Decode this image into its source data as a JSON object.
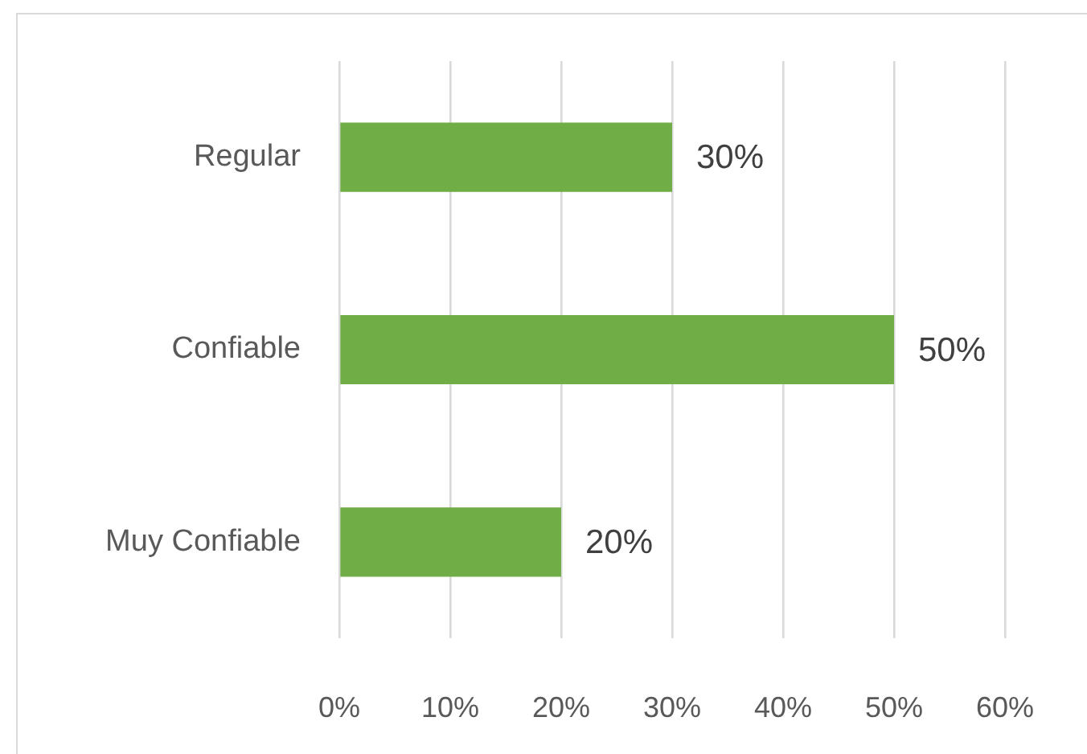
{
  "chart_data": {
    "type": "bar",
    "orientation": "horizontal",
    "categories": [
      "Regular",
      "Confiable",
      "Muy Confiable"
    ],
    "values": [
      30,
      50,
      20
    ],
    "color": "#70ad47",
    "value_labels": [
      "30%",
      "50%",
      "20%"
    ],
    "xlim": [
      0,
      60
    ],
    "xticks": [
      {
        "value": 0,
        "label": "0%"
      },
      {
        "value": 10,
        "label": "10%"
      },
      {
        "value": 20,
        "label": "20%"
      },
      {
        "value": 30,
        "label": "30%"
      },
      {
        "value": 40,
        "label": "40%"
      },
      {
        "value": 50,
        "label": "50%"
      },
      {
        "value": 60,
        "label": "60%"
      }
    ],
    "grid": "x"
  }
}
